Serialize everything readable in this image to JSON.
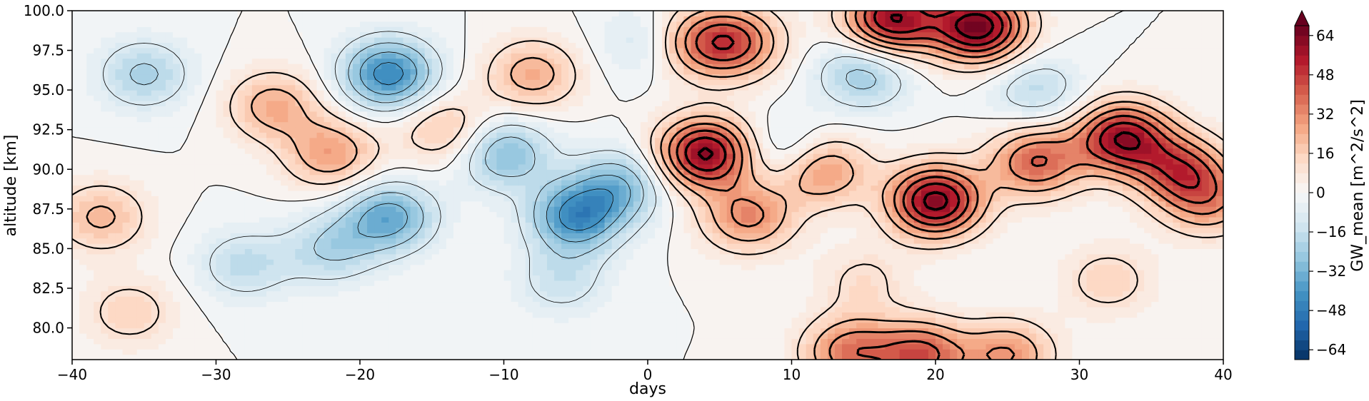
{
  "chart_data": {
    "type": "heatmap",
    "title": "",
    "xlabel": "days",
    "ylabel": "altitude [km]",
    "xlim": [
      -40,
      40
    ],
    "ylim": [
      78,
      100
    ],
    "x_ticks": [
      -40,
      -30,
      -20,
      -10,
      0,
      10,
      20,
      30,
      40
    ],
    "x_tick_labels": [
      "−40",
      "−30",
      "−20",
      "−10",
      "0",
      "10",
      "20",
      "30",
      "40"
    ],
    "y_ticks": [
      80.0,
      82.5,
      85.0,
      87.5,
      90.0,
      92.5,
      95.0,
      97.5,
      100.0
    ],
    "y_tick_labels": [
      "80.0",
      "82.5",
      "85.0",
      "87.5",
      "90.0",
      "92.5",
      "95.0",
      "97.5",
      "100.0"
    ],
    "colorbar": {
      "label": "GW_mean [m^2/s^2]",
      "range": [
        -68,
        68
      ],
      "extend": "max",
      "colormap": "RdBu_r",
      "ticks": [
        -64,
        -48,
        -32,
        -16,
        0,
        16,
        32,
        48,
        64
      ],
      "tick_labels": [
        "−64",
        "−48",
        "−32",
        "−16",
        "0",
        "16",
        "32",
        "48",
        "64"
      ]
    },
    "grid": false,
    "contours": "black line contours overlaid on filled contours",
    "features": [
      {
        "x": 4,
        "y": 91,
        "value": 62
      },
      {
        "x": 20,
        "y": 88,
        "value": 64
      },
      {
        "x": 33,
        "y": 92,
        "value": 58
      },
      {
        "x": 23,
        "y": 99,
        "value": 66
      },
      {
        "x": 17,
        "y": 99.5,
        "value": 60
      },
      {
        "x": 6,
        "y": 98,
        "value": 40
      },
      {
        "x": -22,
        "y": 91,
        "value": 28
      },
      {
        "x": -26,
        "y": 94,
        "value": 25
      },
      {
        "x": -14,
        "y": 92.5,
        "value": 20
      },
      {
        "x": -8,
        "y": 96,
        "value": 25
      },
      {
        "x": 12,
        "y": 90,
        "value": 35
      },
      {
        "x": 7,
        "y": 87,
        "value": 32
      },
      {
        "x": 27,
        "y": 90.5,
        "value": 40
      },
      {
        "x": 37,
        "y": 90,
        "value": 40
      },
      {
        "x": 39,
        "y": 88,
        "value": 28
      },
      {
        "x": -38,
        "y": 87,
        "value": 22
      },
      {
        "x": 3,
        "y": 98,
        "value": 25
      },
      {
        "x": 14,
        "y": 78.5,
        "value": 35
      },
      {
        "x": 19,
        "y": 78.3,
        "value": 42
      },
      {
        "x": 25,
        "y": 78.3,
        "value": 30
      },
      {
        "x": -18,
        "y": 96,
        "value": -45
      },
      {
        "x": -18,
        "y": 87,
        "value": -35
      },
      {
        "x": -5,
        "y": 87,
        "value": -42
      },
      {
        "x": -2,
        "y": 89,
        "value": -28
      },
      {
        "x": -10,
        "y": 91,
        "value": -30
      },
      {
        "x": -22,
        "y": 85,
        "value": -20
      },
      {
        "x": -28,
        "y": 84,
        "value": -18
      },
      {
        "x": -35,
        "y": 96,
        "value": -22
      },
      {
        "x": 15,
        "y": 96,
        "value": -25
      },
      {
        "x": 10,
        "y": 91,
        "value": -18
      },
      {
        "x": 27,
        "y": 95,
        "value": -18
      },
      {
        "x": 0,
        "y": 98,
        "value": -15
      },
      {
        "x": -6,
        "y": 83,
        "value": -15
      },
      {
        "x": 15,
        "y": 83,
        "value": 12
      },
      {
        "x": 32,
        "y": 83,
        "value": 15
      },
      {
        "x": -36,
        "y": 81,
        "value": 15
      }
    ]
  }
}
